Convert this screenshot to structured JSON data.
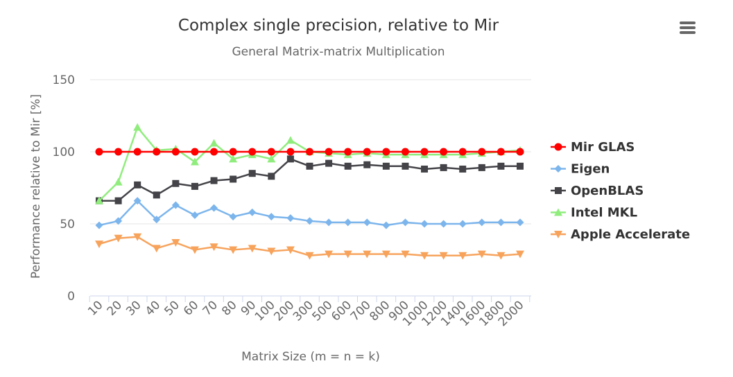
{
  "chart_data": {
    "type": "line",
    "title": "Complex single precision, relative to Mir",
    "subtitle": "General Matrix-matrix Multiplication",
    "xlabel": "Matrix Size (m = n = k)",
    "ylabel": "Performance relative to Mir [%]",
    "ylim": [
      0,
      150
    ],
    "yticks": [
      "0",
      "50",
      "100",
      "150"
    ],
    "grid": true,
    "legend_position": "right",
    "categories": [
      "10",
      "20",
      "30",
      "40",
      "50",
      "60",
      "70",
      "80",
      "90",
      "100",
      "200",
      "300",
      "500",
      "600",
      "700",
      "800",
      "900",
      "1000",
      "1200",
      "1400",
      "1600",
      "1800",
      "2000"
    ],
    "series": [
      {
        "name": "Mir GLAS",
        "color": "#ff0000",
        "marker": "circle",
        "values": [
          100,
          100,
          100,
          100,
          100,
          100,
          100,
          100,
          100,
          100,
          100,
          100,
          100,
          100,
          100,
          100,
          100,
          100,
          100,
          100,
          100,
          100,
          100
        ]
      },
      {
        "name": "Eigen",
        "color": "#7cb5ec",
        "marker": "diamond",
        "values": [
          49,
          52,
          66,
          53,
          63,
          56,
          61,
          55,
          58,
          55,
          54,
          52,
          51,
          51,
          51,
          49,
          51,
          50,
          50,
          50,
          51,
          51,
          51
        ]
      },
      {
        "name": "OpenBLAS",
        "color": "#434348",
        "marker": "square",
        "values": [
          66,
          66,
          77,
          70,
          78,
          76,
          80,
          81,
          85,
          83,
          95,
          90,
          92,
          90,
          91,
          90,
          90,
          88,
          89,
          88,
          89,
          90,
          90
        ]
      },
      {
        "name": "Intel MKL",
        "color": "#90ed7d",
        "marker": "triangle",
        "values": [
          66,
          79,
          117,
          101,
          102,
          93,
          106,
          95,
          98,
          95,
          108,
          100,
          99,
          98,
          99,
          98,
          98,
          98,
          98,
          98,
          99,
          100,
          101
        ]
      },
      {
        "name": "Apple Accelerate",
        "color": "#f7a35c",
        "marker": "triangle-down",
        "values": [
          36,
          40,
          41,
          33,
          37,
          32,
          34,
          32,
          33,
          31,
          32,
          28,
          29,
          29,
          29,
          29,
          29,
          28,
          28,
          28,
          29,
          28,
          29
        ]
      }
    ]
  },
  "ui": {
    "menu_icon": "hamburger-menu-icon"
  }
}
